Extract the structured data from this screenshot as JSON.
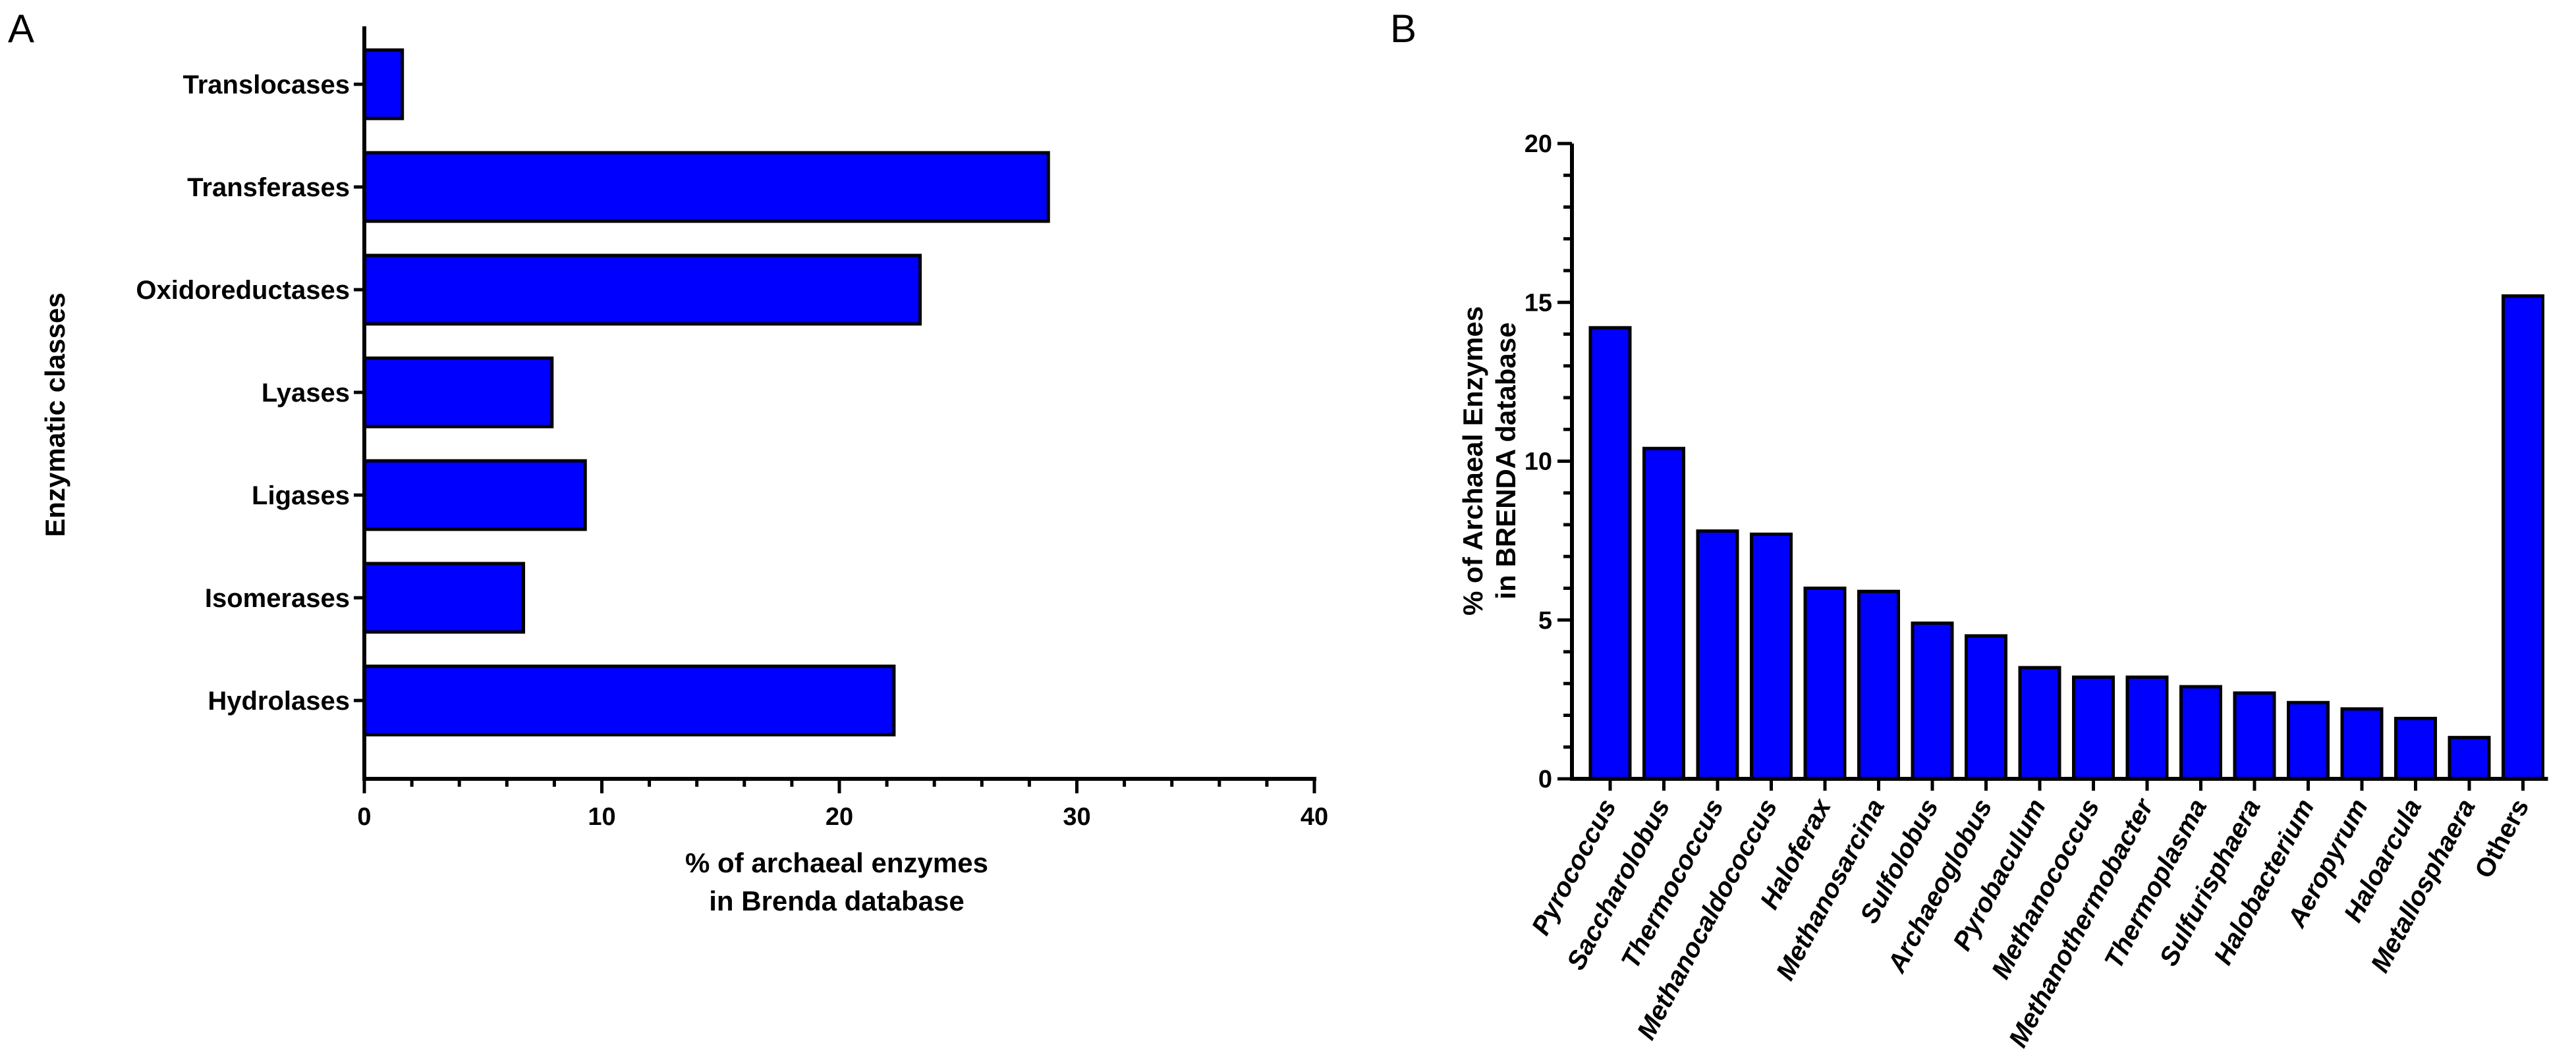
{
  "chart_data": [
    {
      "panel": "A",
      "type": "bar",
      "orientation": "horizontal",
      "title": "",
      "xlabel": "% of archaeal enzymes\nin Brenda database",
      "ylabel": "Enzymatic classes",
      "xlim": [
        0,
        40
      ],
      "xticks": [
        0,
        10,
        20,
        30,
        40
      ],
      "categories": [
        "Translocases",
        "Transferases",
        "Oxidoreductases",
        "Lyases",
        "Ligases",
        "Isomerases",
        "Hydrolases"
      ],
      "values": [
        1.6,
        28.8,
        23.4,
        7.9,
        9.3,
        6.7,
        22.3
      ],
      "bar_color": "#0000ff",
      "grid": false
    },
    {
      "panel": "B",
      "type": "bar",
      "orientation": "vertical",
      "title": "",
      "xlabel": "",
      "ylabel": "% of Archaeal Enzymes\nin BRENDA database",
      "ylim": [
        0,
        20
      ],
      "yticks": [
        0,
        5,
        10,
        15,
        20
      ],
      "categories": [
        "Pyrococcus",
        "Saccharolobus",
        "Thermococcus",
        "Methanocaldococcus",
        "Haloferax",
        "Methanosarcina",
        "Sulfolobus",
        "Archaeoglobus",
        "Pyrobaculum",
        "Methanococcus",
        "Methanothermobacter",
        "Thermoplasma",
        "Sulfurisphaera",
        "Halobacterium",
        "Aeropyrum",
        "Haloarcula",
        "Metallosphaera",
        "Others"
      ],
      "italic_categories": true,
      "non_italic": [
        "Others"
      ],
      "values": [
        14.2,
        10.4,
        7.8,
        7.7,
        6.0,
        5.9,
        4.9,
        4.5,
        3.5,
        3.2,
        3.2,
        2.9,
        2.7,
        2.4,
        2.2,
        1.9,
        1.3,
        15.2
      ],
      "bar_color": "#0000ff",
      "grid": false
    }
  ]
}
